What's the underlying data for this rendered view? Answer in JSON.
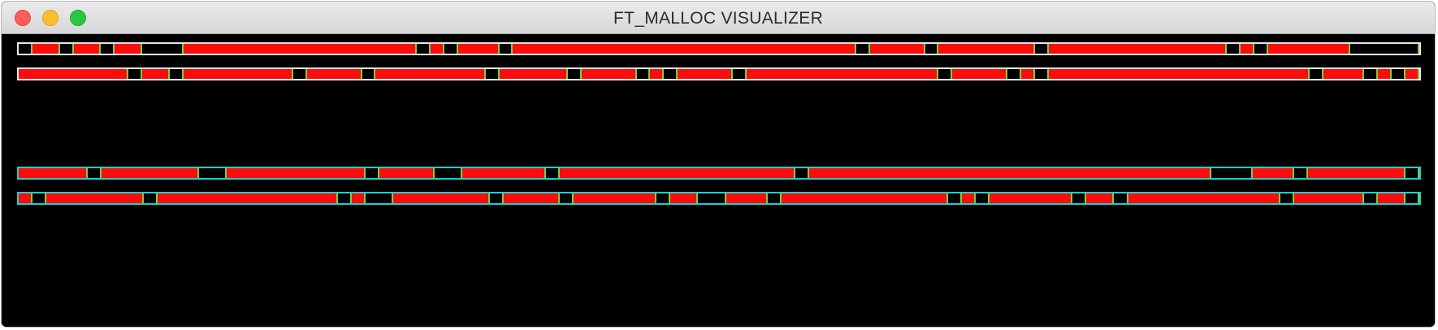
{
  "window": {
    "title": "FT_MALLOC VISUALIZER",
    "controls": [
      "close",
      "minimize",
      "maximize"
    ]
  },
  "colors": {
    "background": "#000000",
    "allocated_block": "#ff0b0b",
    "block_separator": "#7ad13a",
    "tiny_zone_border": "#e6e6e6",
    "small_zone_border": "#1ad0d0"
  },
  "zones": [
    {
      "kind": "tiny",
      "border": "#e6e6e6",
      "blocks": [
        {
          "used": false,
          "size": 1
        },
        {
          "used": true,
          "size": 2
        },
        {
          "used": false,
          "size": 1
        },
        {
          "used": true,
          "size": 2
        },
        {
          "used": false,
          "size": 1
        },
        {
          "used": true,
          "size": 2
        },
        {
          "used": false,
          "size": 3
        },
        {
          "used": true,
          "size": 17
        },
        {
          "used": false,
          "size": 1
        },
        {
          "used": true,
          "size": 1
        },
        {
          "used": false,
          "size": 1
        },
        {
          "used": true,
          "size": 3
        },
        {
          "used": false,
          "size": 1
        },
        {
          "used": true,
          "size": 25
        },
        {
          "used": false,
          "size": 1
        },
        {
          "used": true,
          "size": 4
        },
        {
          "used": false,
          "size": 1
        },
        {
          "used": true,
          "size": 7
        },
        {
          "used": false,
          "size": 1
        },
        {
          "used": true,
          "size": 13
        },
        {
          "used": false,
          "size": 1
        },
        {
          "used": true,
          "size": 1
        },
        {
          "used": false,
          "size": 1
        },
        {
          "used": true,
          "size": 6
        },
        {
          "used": false,
          "size": 5
        }
      ]
    },
    {
      "kind": "tiny",
      "border": "#e6e6e6",
      "blocks": [
        {
          "used": true,
          "size": 8
        },
        {
          "used": false,
          "size": 1
        },
        {
          "used": true,
          "size": 2
        },
        {
          "used": false,
          "size": 1
        },
        {
          "used": true,
          "size": 8
        },
        {
          "used": false,
          "size": 1
        },
        {
          "used": true,
          "size": 4
        },
        {
          "used": false,
          "size": 1
        },
        {
          "used": true,
          "size": 8
        },
        {
          "used": false,
          "size": 1
        },
        {
          "used": true,
          "size": 5
        },
        {
          "used": false,
          "size": 1
        },
        {
          "used": true,
          "size": 4
        },
        {
          "used": false,
          "size": 1
        },
        {
          "used": true,
          "size": 1
        },
        {
          "used": false,
          "size": 1
        },
        {
          "used": true,
          "size": 4
        },
        {
          "used": false,
          "size": 1
        },
        {
          "used": true,
          "size": 14
        },
        {
          "used": false,
          "size": 1
        },
        {
          "used": true,
          "size": 4
        },
        {
          "used": false,
          "size": 1
        },
        {
          "used": true,
          "size": 1
        },
        {
          "used": false,
          "size": 1
        },
        {
          "used": true,
          "size": 19
        },
        {
          "used": false,
          "size": 1
        },
        {
          "used": true,
          "size": 3
        },
        {
          "used": false,
          "size": 1
        },
        {
          "used": true,
          "size": 1
        },
        {
          "used": false,
          "size": 1
        },
        {
          "used": true,
          "size": 1
        }
      ]
    },
    {
      "kind": "small",
      "border": "#1ad0d0",
      "blocks": [
        {
          "used": true,
          "size": 5
        },
        {
          "used": false,
          "size": 1
        },
        {
          "used": true,
          "size": 7
        },
        {
          "used": false,
          "size": 2
        },
        {
          "used": true,
          "size": 10
        },
        {
          "used": false,
          "size": 1
        },
        {
          "used": true,
          "size": 4
        },
        {
          "used": false,
          "size": 2
        },
        {
          "used": true,
          "size": 6
        },
        {
          "used": false,
          "size": 1
        },
        {
          "used": true,
          "size": 17
        },
        {
          "used": false,
          "size": 1
        },
        {
          "used": true,
          "size": 29
        },
        {
          "used": false,
          "size": 3
        },
        {
          "used": true,
          "size": 3
        },
        {
          "used": false,
          "size": 1
        },
        {
          "used": true,
          "size": 7
        },
        {
          "used": false,
          "size": 1
        }
      ]
    },
    {
      "kind": "small",
      "border": "#1ad0d0",
      "blocks": [
        {
          "used": true,
          "size": 1
        },
        {
          "used": false,
          "size": 1
        },
        {
          "used": true,
          "size": 7
        },
        {
          "used": false,
          "size": 1
        },
        {
          "used": true,
          "size": 13
        },
        {
          "used": false,
          "size": 1
        },
        {
          "used": true,
          "size": 1
        },
        {
          "used": false,
          "size": 2
        },
        {
          "used": true,
          "size": 7
        },
        {
          "used": false,
          "size": 1
        },
        {
          "used": true,
          "size": 4
        },
        {
          "used": false,
          "size": 1
        },
        {
          "used": true,
          "size": 6
        },
        {
          "used": false,
          "size": 1
        },
        {
          "used": true,
          "size": 2
        },
        {
          "used": false,
          "size": 2
        },
        {
          "used": true,
          "size": 3
        },
        {
          "used": false,
          "size": 1
        },
        {
          "used": true,
          "size": 12
        },
        {
          "used": false,
          "size": 1
        },
        {
          "used": true,
          "size": 1
        },
        {
          "used": false,
          "size": 1
        },
        {
          "used": true,
          "size": 6
        },
        {
          "used": false,
          "size": 1
        },
        {
          "used": true,
          "size": 2
        },
        {
          "used": false,
          "size": 1
        },
        {
          "used": true,
          "size": 11
        },
        {
          "used": false,
          "size": 1
        },
        {
          "used": true,
          "size": 5
        },
        {
          "used": false,
          "size": 1
        },
        {
          "used": true,
          "size": 2
        },
        {
          "used": false,
          "size": 1
        }
      ]
    }
  ]
}
